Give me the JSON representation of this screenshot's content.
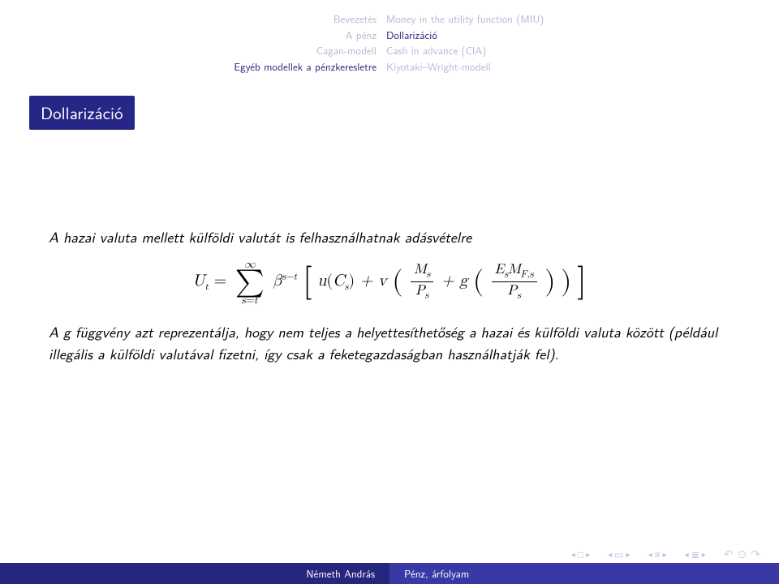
{
  "colors": {
    "beamer_structure": "#26267f",
    "beamer_structure_light": "#3939a5",
    "dim_nav": "#b6b6d2",
    "background": "#ffffff",
    "text": "#000000",
    "title_bg": "#262686",
    "title_fg": "#ffffff"
  },
  "header": {
    "left": [
      "Bevezetés",
      "A pénz",
      "Cagan-modell",
      "Egyéb modellek a pénzkeresletre"
    ],
    "right": [
      "Money in the utility function (MIU)",
      "Dollarizáció",
      "Cash in advance (CIA)",
      "Kiyotaki–Wright-modell"
    ],
    "right_active_index": 1
  },
  "title": "Dollarizáció",
  "body": {
    "intro": "A hazai valuta mellett külföldi valutát is felhasználhatnak adásvételre",
    "equation": {
      "lhs": "U",
      "lhs_sub": "t",
      "sum_top": "∞",
      "sum_bottom": "s=t",
      "beta": "β",
      "beta_exp": "s−t",
      "u": "u",
      "u_arg": "C",
      "u_arg_sub": "s",
      "plus1": "+",
      "v": "v",
      "frac1_num": "M",
      "frac1_num_sub": "s",
      "frac1_den": "P",
      "frac1_den_sub": "s",
      "plus2": "+",
      "g": "g",
      "frac2_num_a": "E",
      "frac2_num_a_sub": "s",
      "frac2_num_b": "M",
      "frac2_num_b_sub": "F,s",
      "frac2_den": "P",
      "frac2_den_sub": "s"
    },
    "para2": "A g függvény azt reprezentálja, hogy nem teljes a helyettesíthetőség a hazai és külföldi valuta között (például illegális a külföldi valutával fizetni, így csak a feketegazdaságban használhatják fel)."
  },
  "footer": {
    "author": "Németh András",
    "title": "Pénz, árfolyam"
  },
  "navbar_icons": {
    "frame_prev": "◂ □ ▸",
    "subsection_prev": "◂ 🗗 ▸",
    "section_prev": "◂ ≡ ▸",
    "appendix": "◂ ≡ ▸",
    "back_forward": "↺ ↻ ↺"
  }
}
